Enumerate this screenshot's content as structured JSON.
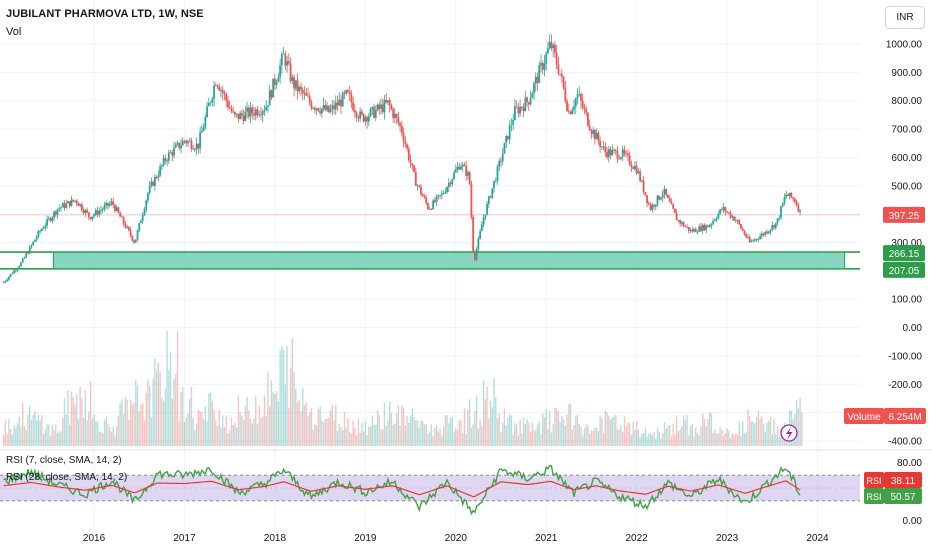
{
  "header": {
    "title": "JUBILANT PHARMOVA LTD, 1W, NSE",
    "volume_label": "Vol",
    "currency": "INR"
  },
  "indicators": {
    "rsi1_label": "RSI (7, close, SMA, 14, 2)",
    "rsi2_label": "RSI (28, close, SMA, 14, 2)"
  },
  "colors": {
    "up": "#26a69a",
    "down": "#ef5350",
    "zone_fill": "#5fc8ab",
    "zone_line": "#2e9d4a",
    "rsi_fast": "#43a047",
    "rsi_slow": "#e53935",
    "rsi_band": "#c5b6e8"
  },
  "chart_data": {
    "type": "candlestick",
    "xlabel": "",
    "ylabel": "",
    "x_ticks": [
      "2016",
      "2017",
      "2018",
      "2019",
      "2020",
      "2021",
      "2022",
      "2023",
      "2024"
    ],
    "price_ticks": [
      "1000.00",
      "900.00",
      "800.00",
      "700.00",
      "600.00",
      "500.00",
      "400.00",
      "300.00",
      "200.00",
      "100.00",
      "0.00",
      "-100.00",
      "-200.00",
      "-300.00",
      "-400.00"
    ],
    "price_range": [
      -420,
      1050
    ],
    "last_price": "397.25",
    "support_zone": {
      "upper": "266.15",
      "lower": "207.05",
      "start_year": 2015.55,
      "end_year": 2024.3
    },
    "volume_label": "Volume",
    "last_volume": "6.254M",
    "price_path": [
      [
        2015.0,
        160
      ],
      [
        2015.2,
        230
      ],
      [
        2015.4,
        340
      ],
      [
        2015.6,
        420
      ],
      [
        2015.8,
        450
      ],
      [
        2015.95,
        390
      ],
      [
        2016.2,
        440
      ],
      [
        2016.45,
        300
      ],
      [
        2016.6,
        480
      ],
      [
        2016.8,
        600
      ],
      [
        2017.0,
        660
      ],
      [
        2017.15,
        640
      ],
      [
        2017.35,
        880
      ],
      [
        2017.55,
        740
      ],
      [
        2017.75,
        760
      ],
      [
        2017.9,
        780
      ],
      [
        2018.1,
        960
      ],
      [
        2018.2,
        860
      ],
      [
        2018.4,
        790
      ],
      [
        2018.6,
        760
      ],
      [
        2018.8,
        820
      ],
      [
        2018.95,
        740
      ],
      [
        2019.1,
        760
      ],
      [
        2019.25,
        790
      ],
      [
        2019.4,
        700
      ],
      [
        2019.55,
        520
      ],
      [
        2019.7,
        420
      ],
      [
        2019.85,
        470
      ],
      [
        2020.05,
        580
      ],
      [
        2020.15,
        530
      ],
      [
        2020.2,
        230
      ],
      [
        2020.3,
        380
      ],
      [
        2020.45,
        540
      ],
      [
        2020.65,
        760
      ],
      [
        2020.8,
        800
      ],
      [
        2020.95,
        920
      ],
      [
        2021.05,
        1000
      ],
      [
        2021.15,
        900
      ],
      [
        2021.25,
        760
      ],
      [
        2021.35,
        820
      ],
      [
        2021.5,
        700
      ],
      [
        2021.65,
        620
      ],
      [
        2021.85,
        610
      ],
      [
        2022.0,
        560
      ],
      [
        2022.15,
        420
      ],
      [
        2022.3,
        480
      ],
      [
        2022.45,
        380
      ],
      [
        2022.6,
        340
      ],
      [
        2022.8,
        360
      ],
      [
        2022.95,
        420
      ],
      [
        2023.1,
        380
      ],
      [
        2023.25,
        300
      ],
      [
        2023.4,
        330
      ],
      [
        2023.55,
        370
      ],
      [
        2023.65,
        470
      ],
      [
        2023.75,
        450
      ],
      [
        2023.82,
        397
      ]
    ],
    "volume_bars": [
      0.25,
      0.35,
      0.3,
      0.2,
      0.45,
      0.6,
      0.3,
      0.25,
      0.4,
      0.55,
      0.7,
      1.0,
      0.5,
      0.35,
      0.45,
      0.3,
      0.4,
      0.5,
      0.6,
      0.9,
      0.55,
      0.4,
      0.35,
      0.3,
      0.25,
      0.3,
      0.4,
      0.35,
      0.3,
      0.2,
      0.25,
      0.3,
      0.4,
      0.55,
      0.3,
      0.25,
      0.2,
      0.3,
      0.35,
      0.25,
      0.2,
      0.3,
      0.25,
      0.2,
      0.15,
      0.2,
      0.25,
      0.2,
      0.3,
      0.15,
      0.2,
      0.3,
      0.25,
      0.2,
      0.4
    ],
    "rsi_levels": [
      "80.00",
      "0.00"
    ],
    "rsi_fast": {
      "name": "RSI",
      "last": "50.57"
    },
    "rsi_slow": {
      "name": "RSI",
      "last": "38.11"
    },
    "rsi_path": [
      [
        2015.0,
        60
      ],
      [
        2015.3,
        75
      ],
      [
        2015.6,
        55
      ],
      [
        2015.9,
        40
      ],
      [
        2016.2,
        62
      ],
      [
        2016.45,
        28
      ],
      [
        2016.7,
        72
      ],
      [
        2017.0,
        70
      ],
      [
        2017.3,
        80
      ],
      [
        2017.6,
        42
      ],
      [
        2017.9,
        58
      ],
      [
        2018.1,
        78
      ],
      [
        2018.4,
        35
      ],
      [
        2018.7,
        60
      ],
      [
        2019.0,
        44
      ],
      [
        2019.3,
        60
      ],
      [
        2019.6,
        20
      ],
      [
        2019.9,
        60
      ],
      [
        2020.2,
        10
      ],
      [
        2020.5,
        78
      ],
      [
        2020.8,
        65
      ],
      [
        2021.05,
        80
      ],
      [
        2021.3,
        42
      ],
      [
        2021.55,
        60
      ],
      [
        2021.8,
        38
      ],
      [
        2022.1,
        22
      ],
      [
        2022.35,
        58
      ],
      [
        2022.6,
        36
      ],
      [
        2022.9,
        64
      ],
      [
        2023.2,
        26
      ],
      [
        2023.45,
        58
      ],
      [
        2023.65,
        82
      ],
      [
        2023.82,
        38
      ]
    ]
  }
}
